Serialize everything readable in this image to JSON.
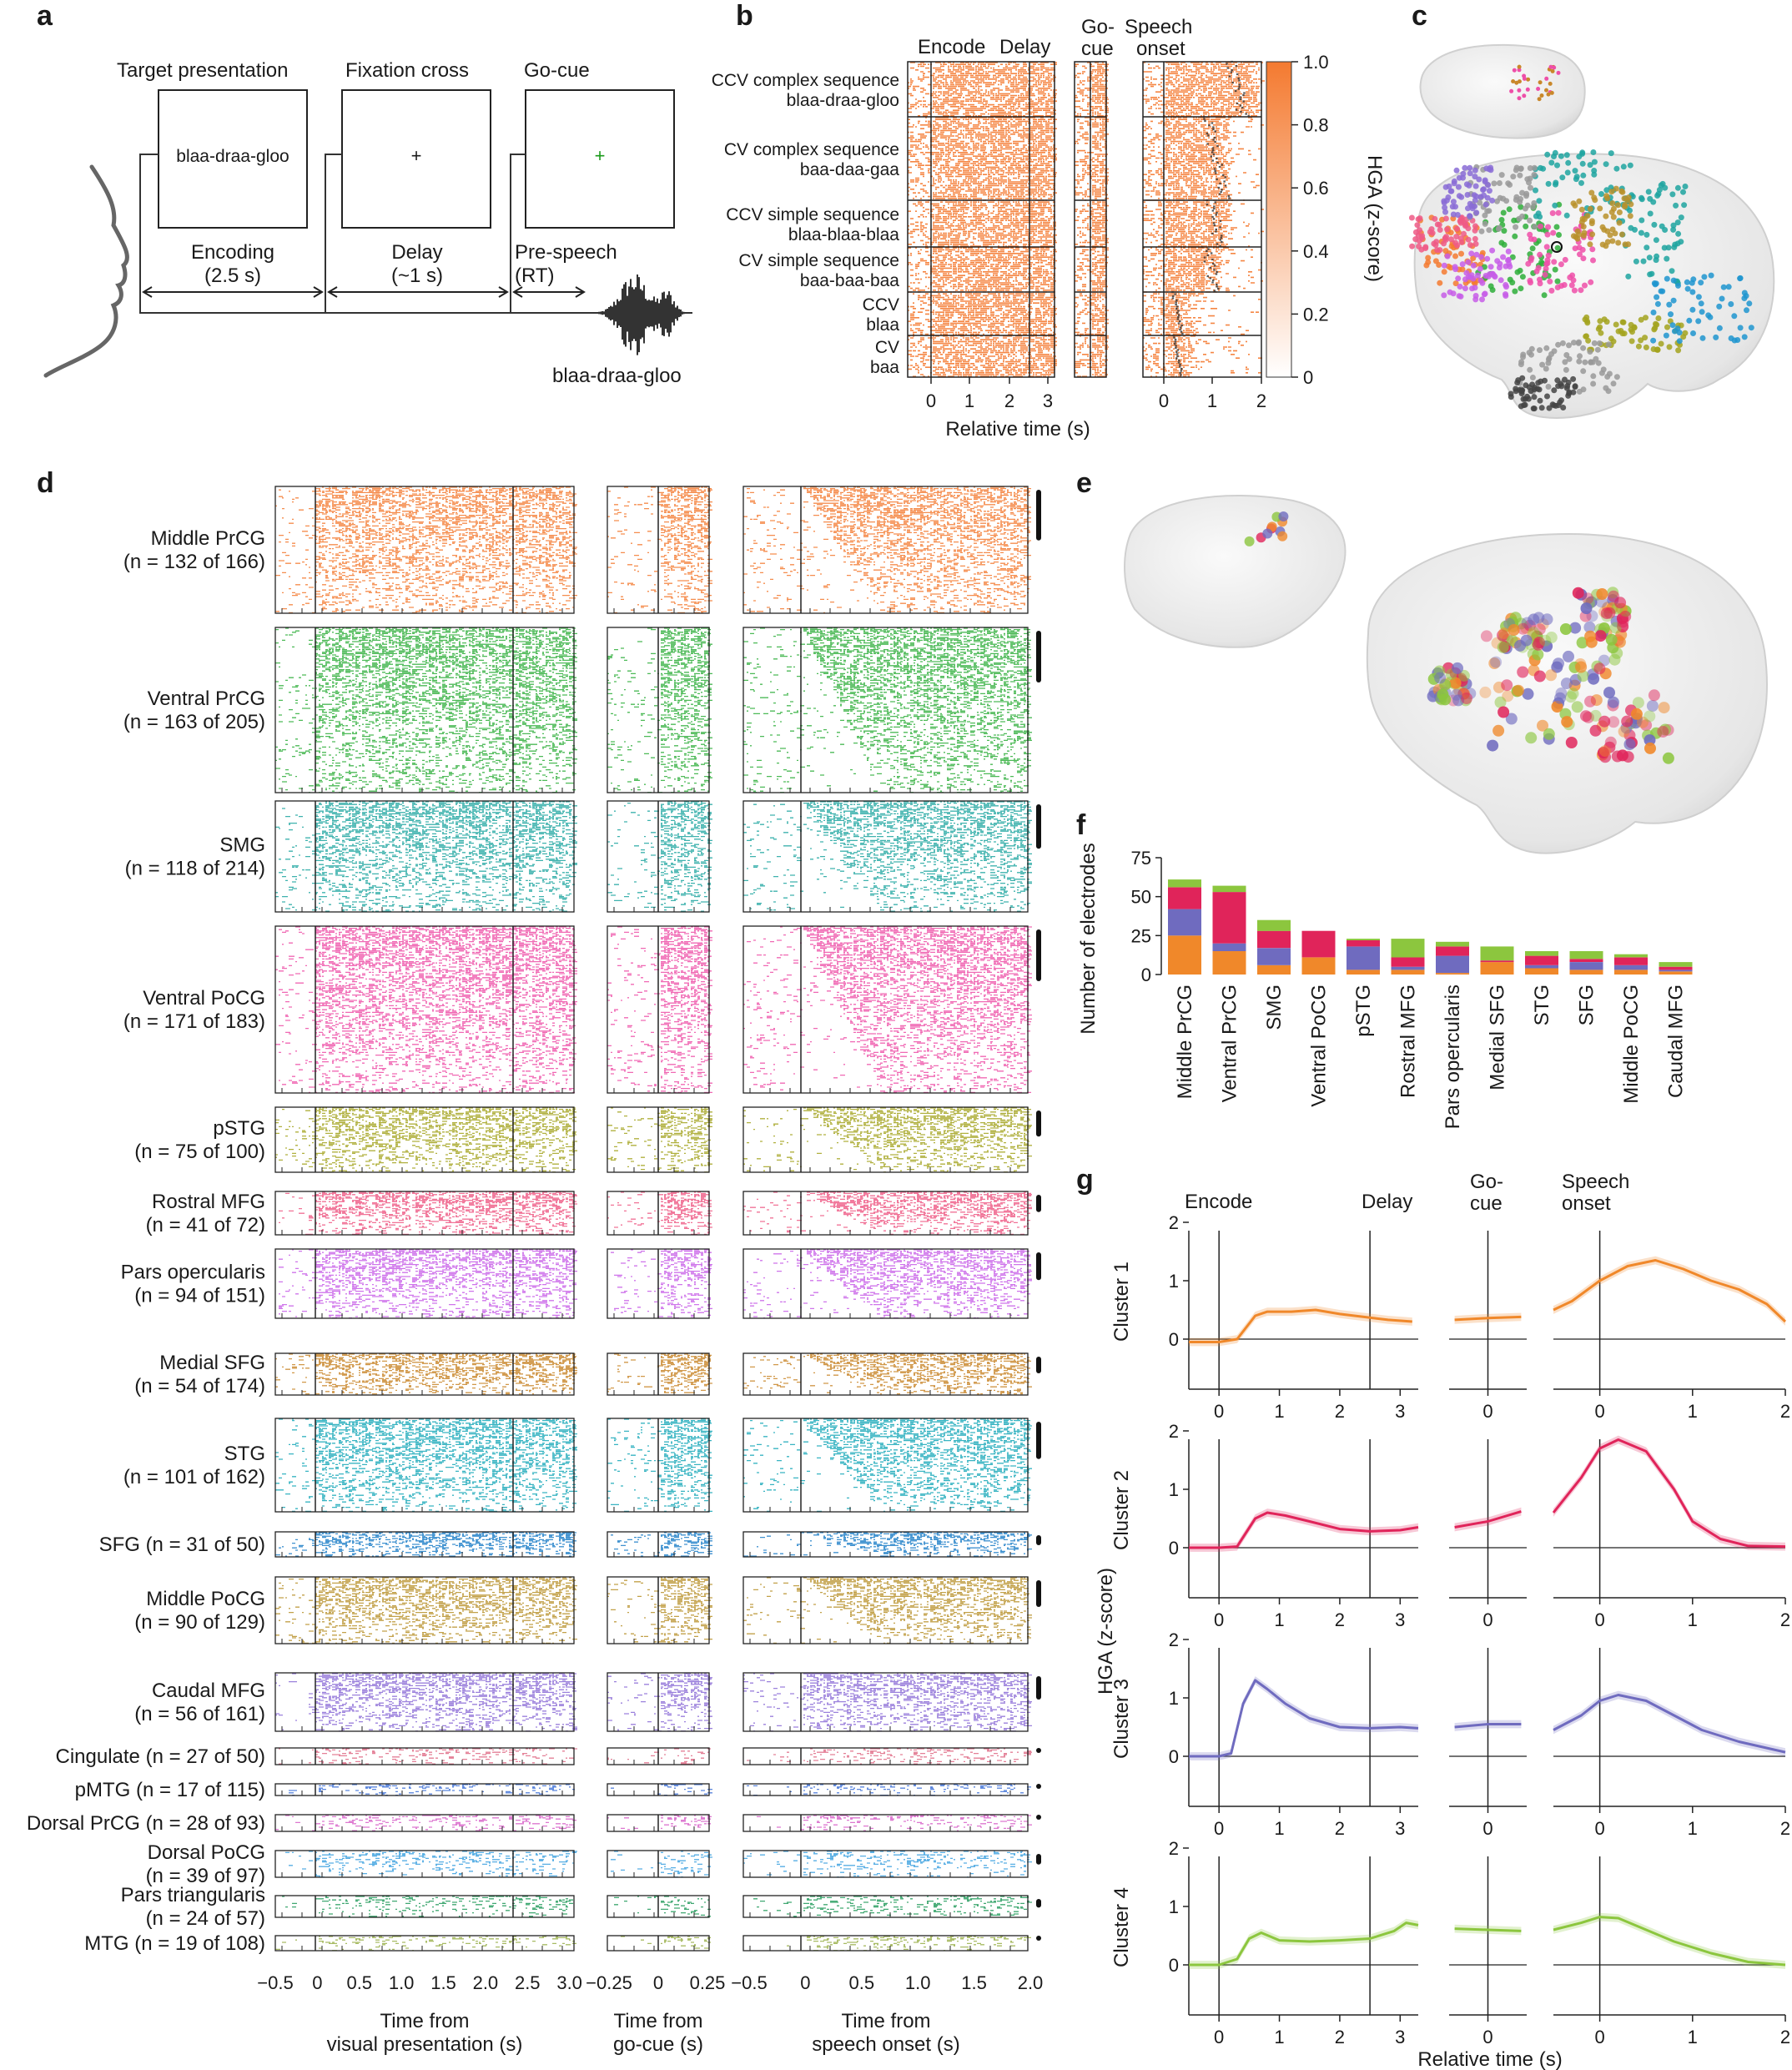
{
  "panels": {
    "a": "a",
    "b": "b",
    "c": "c",
    "d": "d",
    "e": "e",
    "f": "f",
    "g": "g"
  },
  "colors": {
    "orange": "#f47a30",
    "green": "#2eae3a",
    "teal": "#1ea5a0",
    "pink": "#ee4fa8",
    "olive": "#a3a31e",
    "rose": "#ef5b86",
    "violet": "#c75de8",
    "brown": "#c9872a",
    "cyan": "#16a8b8",
    "blue": "#1f95cf",
    "gold": "#b8912a",
    "purple": "#8a6cd6",
    "c1": "#f0882a",
    "c2": "#e0245a",
    "c3": "#6f6bbf",
    "c4": "#8cc63e"
  },
  "a": {
    "stage_titles": [
      "Target presentation",
      "Fixation cross",
      "Go-cue"
    ],
    "screen_word": "blaa-draa-gloo",
    "fixation": "+",
    "go_symbol": "+",
    "phase_encoding": "Encoding",
    "phase_encoding_dur": "(2.5 s)",
    "phase_delay": "Delay",
    "phase_delay_dur": "(~1 s)",
    "phase_prespeech": "Pre-speech",
    "phase_rt": "(RT)",
    "spoken": "blaa-draa-gloo"
  },
  "b": {
    "head_encode": "Encode",
    "head_delay": "Delay",
    "head_go1": "Go-",
    "head_go2": "cue",
    "head_sp1": "Speech",
    "head_sp2": "onset",
    "row_labels": [
      [
        "CCV complex sequence",
        "blaa-draa-gloo"
      ],
      [
        "CV complex sequence",
        "baa-daa-gaa"
      ],
      [
        "CCV simple sequence",
        "blaa-blaa-blaa"
      ],
      [
        "CV simple sequence",
        "baa-baa-baa"
      ],
      [
        "CCV",
        "blaa"
      ],
      [
        "CV",
        "baa"
      ]
    ],
    "xticks_enc": [
      "0",
      "1",
      "2",
      "3"
    ],
    "xticks_sp": [
      "0",
      "1",
      "2"
    ],
    "xlabel": "Relative time (s)",
    "cbar_ticks": [
      "1.0",
      "0.8",
      "0.6",
      "0.4",
      "0.2",
      "0"
    ],
    "cbar_label": "HGA (z-score)"
  },
  "d": {
    "regions": [
      {
        "name": "Middle PrCG",
        "count": "(n = 132 of 166)",
        "color": "#f47a30"
      },
      {
        "name": "Ventral PrCG",
        "count": "(n = 163 of 205)",
        "color": "#2eae3a"
      },
      {
        "name": "SMG",
        "count": "(n = 118 of 214)",
        "color": "#1ea5a0"
      },
      {
        "name": "Ventral PoCG",
        "count": "(n = 171 of 183)",
        "color": "#ee4fa8"
      },
      {
        "name": "pSTG",
        "count": "(n = 75 of 100)",
        "color": "#a3a31e"
      },
      {
        "name": "Rostral MFG",
        "count": "(n = 41 of 72)",
        "color": "#ef5b86"
      },
      {
        "name": "Pars opercularis",
        "count": "(n = 94 of 151)",
        "color": "#c75de8"
      },
      {
        "name": "Medial SFG",
        "count": "(n = 54 of 174)",
        "color": "#c9872a"
      },
      {
        "name": "STG",
        "count": "(n = 101 of 162)",
        "color": "#16a8b8"
      },
      {
        "name": "SFG (n = 31 of 50)",
        "count": "",
        "color": "#1f80c8"
      },
      {
        "name": "Middle PoCG",
        "count": "(n = 90 of 129)",
        "color": "#b8912a"
      },
      {
        "name": "Caudal MFG",
        "count": "(n = 56 of 161)",
        "color": "#8a6cd6"
      },
      {
        "name": "Cingulate (n = 27 of 50)",
        "count": "",
        "color": "#e06a86"
      },
      {
        "name": "pMTG (n = 17 of 115)",
        "count": "",
        "color": "#3f72d8"
      },
      {
        "name": "Dorsal PrCG (n = 28 of 93)",
        "count": "",
        "color": "#d860c8"
      },
      {
        "name": "Dorsal PoCG",
        "count": "(n = 39 of 97)",
        "color": "#3aa0e0"
      },
      {
        "name": "Pars triangularis",
        "count": "(n = 24 of 57)",
        "color": "#1f9a5a"
      },
      {
        "name": "MTG (n = 19 of 108)",
        "count": "",
        "color": "#9ab04a"
      }
    ],
    "xticks_vis": [
      "−0.5",
      "0",
      "0.5",
      "1.0",
      "1.5",
      "2.0",
      "2.5",
      "3.0"
    ],
    "xticks_go": [
      "−0.25",
      "0",
      "0.25"
    ],
    "xticks_sp": [
      "−0.5",
      "0",
      "0.5",
      "1.0",
      "1.5",
      "2.0"
    ],
    "xlabel_vis": [
      "Time from",
      "visual presentation (s)"
    ],
    "xlabel_go": [
      "Time from",
      "go-cue (s)"
    ],
    "xlabel_sp": [
      "Time from",
      "speech onset (s)"
    ]
  },
  "chart_data": [
    {
      "type": "bar",
      "ylabel": "Number of electrodes",
      "yticks": [
        0,
        25,
        50,
        75
      ],
      "ylim": [
        0,
        75
      ],
      "categories": [
        "Middle PrCG",
        "Ventral PrCG",
        "SMG",
        "Ventral PoCG",
        "pSTG",
        "Rostral MFG",
        "Pars opercularis",
        "Medial SFG",
        "STG",
        "SFG",
        "Middle PoCG",
        "Caudal MFG"
      ],
      "series": [
        {
          "color": "#f0882a",
          "values": [
            25,
            15,
            6,
            11,
            3,
            3,
            1,
            8,
            4,
            3,
            3,
            2
          ]
        },
        {
          "color": "#6f6bbf",
          "values": [
            17,
            5,
            11,
            0,
            15,
            2,
            11,
            0,
            2,
            5,
            3,
            1
          ]
        },
        {
          "color": "#e0245a",
          "values": [
            14,
            33,
            11,
            17,
            4,
            6,
            6,
            1,
            6,
            2,
            5,
            2
          ]
        },
        {
          "color": "#8cc63e",
          "values": [
            5,
            4,
            7,
            0,
            1,
            12,
            3,
            9,
            3,
            5,
            2,
            3
          ]
        }
      ]
    },
    {
      "type": "line",
      "ylabel": "HGA (z-score)",
      "xlabel": "Relative time (s)",
      "head_encode": "Encode",
      "head_delay": "Delay",
      "head_go1": "Go-",
      "head_go2": "cue",
      "head_sp1": "Speech",
      "head_sp2": "onset",
      "yticks": [
        "0",
        "1",
        "2"
      ],
      "xticks_enc": [
        "0",
        "1",
        "2",
        "3"
      ],
      "xticks_go": [
        "0"
      ],
      "xticks_sp": [
        "0",
        "1",
        "2"
      ],
      "clusters": [
        {
          "name": "Cluster 1",
          "color": "#f0882a",
          "enc": [
            [
              -0.5,
              -0.05
            ],
            [
              0,
              -0.05
            ],
            [
              0.3,
              0.0
            ],
            [
              0.6,
              0.4
            ],
            [
              0.8,
              0.47
            ],
            [
              1.2,
              0.47
            ],
            [
              1.6,
              0.5
            ],
            [
              2.0,
              0.43
            ],
            [
              2.4,
              0.38
            ],
            [
              2.8,
              0.33
            ],
            [
              3.2,
              0.3
            ]
          ],
          "go": [
            [
              -0.3,
              0.33
            ],
            [
              0,
              0.36
            ],
            [
              0.3,
              0.38
            ]
          ],
          "sp": [
            [
              -0.5,
              0.5
            ],
            [
              -0.3,
              0.65
            ],
            [
              0,
              1.0
            ],
            [
              0.3,
              1.25
            ],
            [
              0.6,
              1.35
            ],
            [
              0.9,
              1.2
            ],
            [
              1.2,
              1.0
            ],
            [
              1.5,
              0.85
            ],
            [
              1.8,
              0.6
            ],
            [
              2.0,
              0.3
            ]
          ]
        },
        {
          "name": "Cluster 2",
          "color": "#e0245a",
          "enc": [
            [
              -0.5,
              0.0
            ],
            [
              0,
              0.0
            ],
            [
              0.3,
              0.02
            ],
            [
              0.6,
              0.5
            ],
            [
              0.8,
              0.6
            ],
            [
              1.1,
              0.55
            ],
            [
              1.5,
              0.45
            ],
            [
              2.0,
              0.32
            ],
            [
              2.5,
              0.28
            ],
            [
              3.0,
              0.3
            ],
            [
              3.3,
              0.35
            ]
          ],
          "go": [
            [
              -0.3,
              0.35
            ],
            [
              0,
              0.45
            ],
            [
              0.3,
              0.62
            ]
          ],
          "sp": [
            [
              -0.5,
              0.6
            ],
            [
              -0.2,
              1.2
            ],
            [
              0,
              1.7
            ],
            [
              0.2,
              1.85
            ],
            [
              0.5,
              1.65
            ],
            [
              0.8,
              1.0
            ],
            [
              1.0,
              0.45
            ],
            [
              1.3,
              0.15
            ],
            [
              1.6,
              0.03
            ],
            [
              2.0,
              0.02
            ]
          ]
        },
        {
          "name": "Cluster 3",
          "color": "#6f6bbf",
          "enc": [
            [
              -0.5,
              0.0
            ],
            [
              0,
              0.0
            ],
            [
              0.2,
              0.05
            ],
            [
              0.4,
              0.9
            ],
            [
              0.6,
              1.3
            ],
            [
              0.8,
              1.15
            ],
            [
              1.1,
              0.9
            ],
            [
              1.5,
              0.65
            ],
            [
              2.0,
              0.5
            ],
            [
              2.5,
              0.48
            ],
            [
              3.0,
              0.5
            ],
            [
              3.3,
              0.48
            ]
          ],
          "go": [
            [
              -0.3,
              0.5
            ],
            [
              0,
              0.55
            ],
            [
              0.3,
              0.55
            ]
          ],
          "sp": [
            [
              -0.5,
              0.45
            ],
            [
              -0.2,
              0.7
            ],
            [
              0,
              0.95
            ],
            [
              0.2,
              1.05
            ],
            [
              0.5,
              0.95
            ],
            [
              0.8,
              0.7
            ],
            [
              1.1,
              0.45
            ],
            [
              1.5,
              0.25
            ],
            [
              2.0,
              0.07
            ]
          ]
        },
        {
          "name": "Cluster 4",
          "color": "#8cc63e",
          "enc": [
            [
              -0.5,
              0.0
            ],
            [
              0,
              0.0
            ],
            [
              0.3,
              0.1
            ],
            [
              0.5,
              0.45
            ],
            [
              0.7,
              0.55
            ],
            [
              1.0,
              0.42
            ],
            [
              1.5,
              0.4
            ],
            [
              2.0,
              0.42
            ],
            [
              2.5,
              0.45
            ],
            [
              2.9,
              0.58
            ],
            [
              3.1,
              0.72
            ],
            [
              3.3,
              0.68
            ]
          ],
          "go": [
            [
              -0.3,
              0.62
            ],
            [
              0,
              0.6
            ],
            [
              0.3,
              0.58
            ]
          ],
          "sp": [
            [
              -0.5,
              0.6
            ],
            [
              -0.2,
              0.72
            ],
            [
              0,
              0.82
            ],
            [
              0.2,
              0.8
            ],
            [
              0.5,
              0.6
            ],
            [
              0.8,
              0.4
            ],
            [
              1.2,
              0.2
            ],
            [
              1.6,
              0.05
            ],
            [
              2.0,
              0.0
            ]
          ]
        }
      ]
    }
  ]
}
